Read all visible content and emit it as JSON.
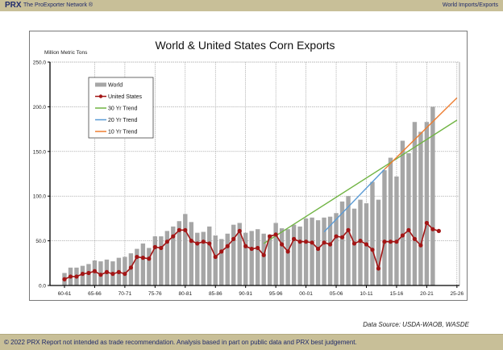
{
  "header": {
    "brand": "PRX",
    "network": "The ProExporter Network ®",
    "section": "World Imports/Exports"
  },
  "footer": {
    "text": "© 2022 PRX  Report not intended as trade recommendation. Analysis based in part on public data and PRX best judgement.",
    "data_source": "Data Source: USDA-WAOB, WASDE"
  },
  "colors": {
    "header_bg": "#c8bf98",
    "world": "#a6a6a6",
    "us": "#a31515",
    "trend30": "#70b443",
    "trend20": "#5b9bd5",
    "trend10": "#ed7d31"
  },
  "chart_data": {
    "type": "bar",
    "title": "World & United States Corn Exports",
    "ylabel": "Million Metric Tons",
    "xlabel": "",
    "ylim": [
      0,
      250
    ],
    "yticks": [
      "0.0",
      "50.0",
      "100.0",
      "150.0",
      "200.0",
      "250.0"
    ],
    "ytick_values": [
      0,
      50,
      100,
      150,
      200,
      250
    ],
    "grid": true,
    "legend_position": "top-left",
    "xtick_labels": [
      "60-61",
      "65-66",
      "70-71",
      "75-76",
      "80-81",
      "85-86",
      "90-91",
      "95-96",
      "00-01",
      "05-06",
      "10-11",
      "15-16",
      "20-21",
      "25-26"
    ],
    "x_start_year": 1960,
    "x_end_year": 2025,
    "series": [
      {
        "name": "World",
        "kind": "bar",
        "start_year": 1960,
        "values": [
          14,
          20,
          20,
          22,
          24,
          28,
          27,
          29,
          27,
          31,
          32,
          36,
          41,
          47,
          42,
          55,
          55,
          61,
          66,
          72,
          80,
          71,
          59,
          60,
          66,
          56,
          52,
          58,
          68,
          70,
          59,
          61,
          63,
          58,
          57,
          70,
          64,
          63,
          68,
          66,
          75,
          76,
          73,
          76,
          77,
          81,
          94,
          100,
          86,
          96,
          92,
          116,
          96,
          129,
          143,
          122,
          162,
          148,
          183,
          172,
          183,
          200
        ]
      },
      {
        "name": "United States",
        "kind": "line-marker",
        "start_year": 1960,
        "values": [
          7,
          10,
          10,
          13,
          14,
          16,
          12,
          15,
          13,
          15,
          13,
          20,
          32,
          31,
          30,
          43,
          42,
          49,
          55,
          62,
          62,
          50,
          47,
          49,
          47,
          32,
          38,
          44,
          52,
          61,
          44,
          41,
          42,
          34,
          55,
          57,
          46,
          38,
          52,
          49,
          49,
          48,
          41,
          48,
          46,
          55,
          54,
          62,
          47,
          50,
          46,
          40,
          19,
          49,
          49,
          49,
          56,
          62,
          52,
          45,
          70,
          63,
          61
        ]
      },
      {
        "name": "30 Yr Trend",
        "kind": "trend",
        "points": [
          [
            1993,
            47
          ],
          [
            2025,
            185
          ]
        ]
      },
      {
        "name": "20 Yr Trend",
        "kind": "trend",
        "points": [
          [
            2003,
            60
          ],
          [
            2013,
            130
          ]
        ]
      },
      {
        "name": "10 Yr Trend",
        "kind": "trend",
        "points": [
          [
            2013,
            130
          ],
          [
            2025,
            210
          ]
        ]
      }
    ]
  }
}
